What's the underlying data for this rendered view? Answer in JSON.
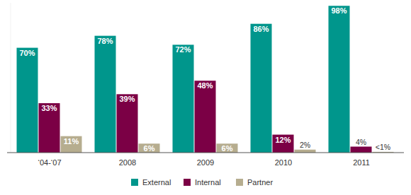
{
  "chart_data": {
    "type": "bar",
    "categories": [
      "‘04-‘07",
      "2008",
      "2009",
      "2010",
      "2011"
    ],
    "series": [
      {
        "name": "External",
        "color": "#00968c",
        "values": [
          70,
          78,
          72,
          86,
          98
        ],
        "value_labels": [
          "70%",
          "78%",
          "72%",
          "86%",
          "98%"
        ]
      },
      {
        "name": "Internal",
        "color": "#7b0045",
        "values": [
          33,
          39,
          48,
          12,
          4
        ],
        "value_labels": [
          "33%",
          "39%",
          "48%",
          "12%",
          "4%"
        ]
      },
      {
        "name": "Partner",
        "color": "#b6ad8f",
        "values": [
          11,
          6,
          6,
          2,
          0.5
        ],
        "value_labels": [
          "11%",
          "6%",
          "6%",
          "2%",
          "<1%"
        ]
      }
    ],
    "ylim": [
      0,
      100
    ],
    "grid": false,
    "legend": "bottom",
    "data_labels": true,
    "tick_labels": "x"
  }
}
